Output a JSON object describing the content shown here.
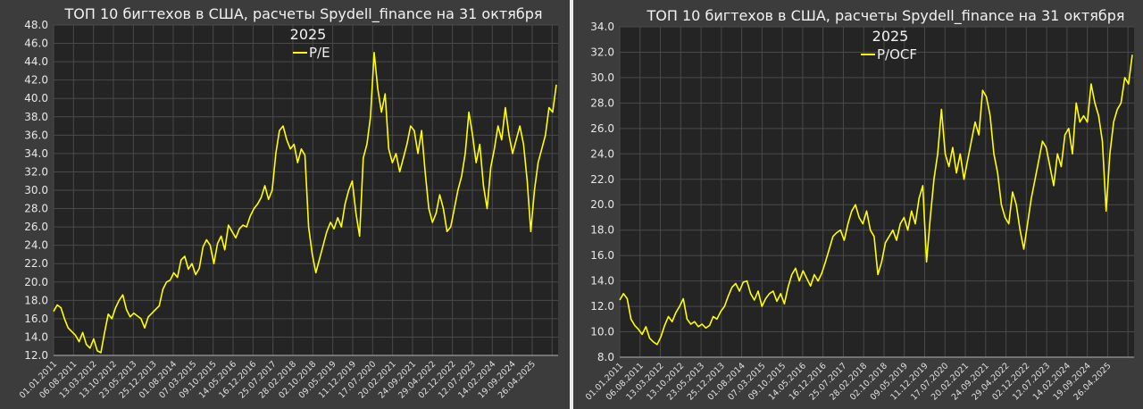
{
  "charts": {
    "left": {
      "title_line1": "ТОП 10 бигтехов в США, расчеты Spydell_finance на 31 октября",
      "title_line2": "2025",
      "legend_label": "P/E",
      "line_color": "#ffff00"
    },
    "right": {
      "title_line1": "ТОП 10 бигтехов в США, расчеты Spydell_finance на 31 октября",
      "title_line2": "2025",
      "legend_label": "P/OCF",
      "line_color": "#ffff00"
    }
  },
  "chart_data": [
    {
      "type": "line",
      "title": "ТОП 10 бигтехов в США, расчеты Spydell_finance на 31 октября 2025",
      "xlabel": "",
      "ylabel": "",
      "ylim": [
        12.0,
        48.0
      ],
      "yticks": [
        "12.0",
        "14.0",
        "16.0",
        "18.0",
        "20.0",
        "22.0",
        "24.0",
        "26.0",
        "28.0",
        "30.0",
        "32.0",
        "34.0",
        "36.0",
        "38.0",
        "40.0",
        "42.0",
        "44.0",
        "46.0",
        "48.0"
      ],
      "xticks": [
        "01.01.2011",
        "06.08.2011",
        "13.03.2012",
        "13.10.2012",
        "23.05.2013",
        "25.12.2013",
        "01.08.2014",
        "07.03.2015",
        "09.10.2015",
        "14.05.2016",
        "16.12.2016",
        "25.07.2017",
        "28.02.2018",
        "02.10.2018",
        "09.05.2019",
        "11.12.2019",
        "17.07.2020",
        "20.02.2021",
        "24.09.2021",
        "29.04.2022",
        "02.12.2022",
        "12.07.2023",
        "14.02.2024",
        "19.09.2024",
        "26.04.2025"
      ],
      "grid": true,
      "legend": {
        "position": "top-center",
        "entries": [
          "P/E"
        ]
      },
      "series": [
        {
          "name": "P/E",
          "color": "#ffff00",
          "x_range": [
            "01.01.2011",
            "31.10.2025"
          ],
          "values": [
            16.8,
            17.5,
            17.2,
            16.0,
            15.0,
            14.6,
            14.2,
            13.5,
            14.5,
            13.2,
            12.8,
            13.8,
            12.5,
            12.3,
            14.5,
            16.5,
            16.0,
            17.2,
            18.0,
            18.6,
            17.0,
            16.2,
            16.6,
            16.3,
            16.0,
            15.0,
            16.2,
            16.6,
            17.0,
            17.4,
            19.2,
            20.0,
            20.2,
            21.0,
            20.5,
            22.4,
            22.8,
            21.4,
            22.0,
            20.8,
            21.5,
            23.8,
            24.6,
            24.0,
            22.0,
            24.2,
            25.0,
            23.5,
            26.2,
            25.5,
            24.8,
            25.8,
            26.2,
            26.0,
            27.2,
            28.0,
            28.5,
            29.2,
            30.5,
            29.0,
            30.0,
            34.0,
            36.5,
            37.0,
            35.5,
            34.5,
            35.0,
            33.0,
            34.5,
            33.8,
            26.0,
            23.0,
            21.0,
            22.5,
            24.0,
            25.5,
            26.5,
            25.8,
            27.0,
            26.0,
            28.5,
            30.0,
            31.0,
            27.5,
            25.0,
            33.5,
            35.0,
            38.0,
            45.0,
            41.0,
            38.5,
            40.5,
            34.5,
            33.0,
            34.0,
            32.0,
            33.5,
            35.0,
            37.0,
            36.5,
            34.0,
            36.5,
            32.0,
            28.0,
            26.5,
            27.5,
            29.5,
            28.0,
            25.5,
            26.0,
            28.0,
            30.0,
            31.5,
            34.0,
            38.5,
            36.0,
            33.0,
            35.0,
            30.5,
            28.0,
            32.5,
            34.5,
            37.0,
            35.5,
            39.0,
            36.0,
            34.0,
            35.5,
            37.0,
            35.0,
            31.0,
            25.5,
            30.0,
            33.0,
            34.5,
            36.0,
            39.0,
            38.5,
            41.5
          ]
        }
      ]
    },
    {
      "type": "line",
      "title": "ТОП 10 бигтехов в США, расчеты Spydell_finance на 31 октября 2025",
      "xlabel": "",
      "ylabel": "",
      "ylim": [
        8.0,
        34.0
      ],
      "yticks": [
        "8.0",
        "10.0",
        "12.0",
        "14.0",
        "16.0",
        "18.0",
        "20.0",
        "22.0",
        "24.0",
        "26.0",
        "28.0",
        "30.0",
        "32.0",
        "34.0"
      ],
      "xticks": [
        "01.01.2011",
        "06.08.2011",
        "13.03.2012",
        "13.10.2012",
        "23.05.2013",
        "25.12.2013",
        "01.08.2014",
        "07.03.2015",
        "09.10.2015",
        "14.05.2016",
        "16.12.2016",
        "25.07.2017",
        "28.02.2018",
        "02.10.2018",
        "09.05.2019",
        "11.12.2019",
        "17.07.2020",
        "20.02.2021",
        "24.09.2021",
        "29.04.2022",
        "02.12.2022",
        "12.07.2023",
        "14.02.2024",
        "19.09.2024",
        "26.04.2025"
      ],
      "grid": true,
      "legend": {
        "position": "top-center",
        "entries": [
          "P/OCF"
        ]
      },
      "series": [
        {
          "name": "P/OCF",
          "color": "#ffff00",
          "x_range": [
            "01.01.2011",
            "31.10.2025"
          ],
          "values": [
            12.5,
            13.0,
            12.6,
            11.0,
            10.5,
            10.2,
            9.8,
            10.4,
            9.5,
            9.2,
            9.0,
            9.6,
            10.5,
            11.2,
            10.8,
            11.5,
            12.0,
            12.6,
            11.0,
            10.6,
            10.8,
            10.4,
            10.6,
            10.3,
            10.5,
            11.2,
            11.0,
            11.6,
            12.0,
            12.8,
            13.5,
            13.8,
            13.2,
            13.9,
            14.0,
            13.0,
            12.5,
            13.2,
            12.0,
            12.6,
            13.0,
            13.2,
            12.4,
            13.0,
            12.2,
            13.5,
            14.5,
            15.0,
            14.0,
            14.8,
            14.2,
            13.6,
            14.5,
            14.0,
            14.6,
            15.5,
            16.5,
            17.5,
            17.8,
            18.0,
            17.2,
            18.5,
            19.5,
            20.0,
            19.0,
            18.5,
            19.5,
            18.0,
            17.5,
            14.5,
            15.5,
            17.0,
            17.5,
            18.0,
            17.2,
            18.5,
            19.0,
            18.0,
            19.5,
            18.5,
            20.5,
            21.5,
            15.5,
            19.0,
            22.0,
            24.0,
            27.5,
            24.0,
            23.0,
            24.5,
            22.5,
            24.0,
            22.0,
            23.5,
            25.0,
            26.5,
            25.5,
            29.0,
            28.5,
            27.0,
            24.0,
            22.5,
            20.0,
            19.0,
            18.5,
            21.0,
            20.0,
            18.0,
            16.5,
            18.5,
            20.5,
            22.0,
            23.5,
            25.0,
            24.5,
            23.0,
            21.5,
            24.0,
            23.0,
            25.5,
            26.0,
            24.0,
            28.0,
            26.5,
            27.0,
            26.5,
            29.5,
            28.0,
            27.0,
            25.0,
            19.5,
            24.0,
            26.5,
            27.5,
            28.0,
            30.0,
            29.5,
            31.8
          ]
        }
      ]
    }
  ]
}
